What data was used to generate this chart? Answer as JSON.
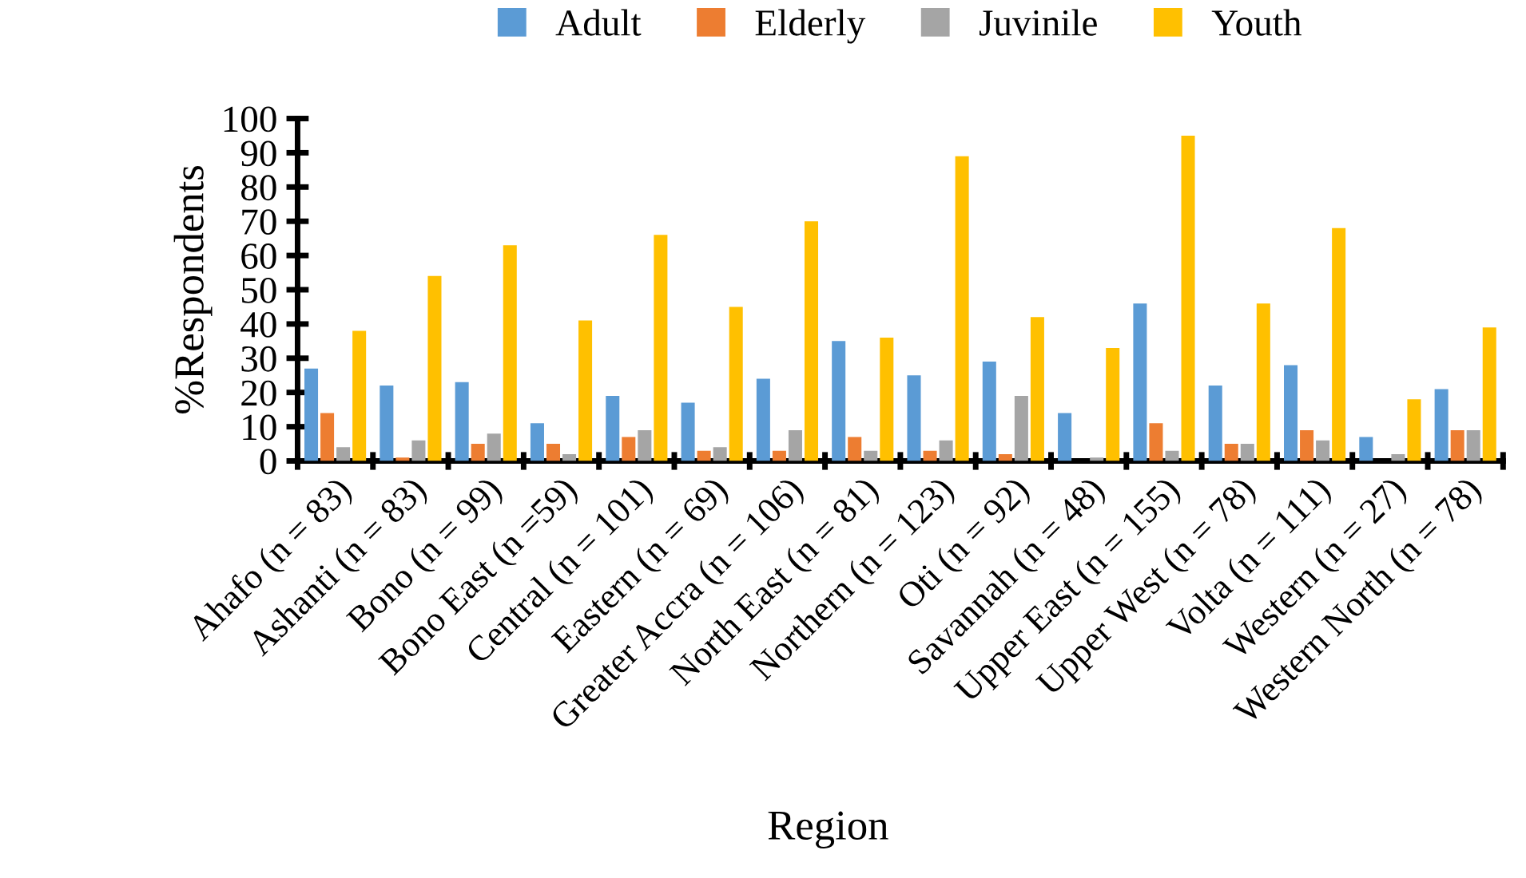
{
  "chart_data": {
    "type": "bar",
    "xlabel": "Region",
    "ylabel": "%Respondents",
    "categories": [
      "Ahafo (n = 83)",
      "Ashanti (n = 83)",
      "Bono (n = 99)",
      "Bono East (n =59)",
      "Central (n = 101)",
      "Eastern (n = 69)",
      "Greater Accra (n = 106)",
      "North East (n = 81)",
      "Northern (n = 123)",
      "Oti (n = 92)",
      "Savannah (n = 48)",
      "Upper East (n = 155)",
      "Upper West (n = 78)",
      "Volta (n = 111)",
      "Western (n = 27)",
      "Western North (n = 78)"
    ],
    "series": [
      {
        "name": "Adult",
        "color": "#5b9bd5",
        "values": [
          27,
          22,
          23,
          11,
          19,
          17,
          24,
          35,
          25,
          29,
          14,
          46,
          22,
          28,
          7,
          21
        ]
      },
      {
        "name": "Elderly",
        "color": "#ed7d31",
        "values": [
          14,
          1,
          5,
          5,
          7,
          3,
          3,
          7,
          3,
          2,
          0,
          11,
          5,
          9,
          0,
          9
        ]
      },
      {
        "name": "Juvinile",
        "color": "#a5a5a5",
        "values": [
          4,
          6,
          8,
          2,
          9,
          4,
          9,
          3,
          6,
          19,
          1,
          3,
          5,
          6,
          2,
          9
        ]
      },
      {
        "name": "Youth",
        "color": "#ffc000",
        "values": [
          38,
          54,
          63,
          41,
          66,
          45,
          70,
          36,
          89,
          42,
          33,
          95,
          46,
          68,
          18,
          39
        ]
      }
    ],
    "ylim": [
      0,
      100
    ],
    "yticks": [
      0,
      10,
      20,
      30,
      40,
      50,
      60,
      70,
      80,
      90,
      100
    ],
    "grid": false,
    "legend": "top"
  }
}
